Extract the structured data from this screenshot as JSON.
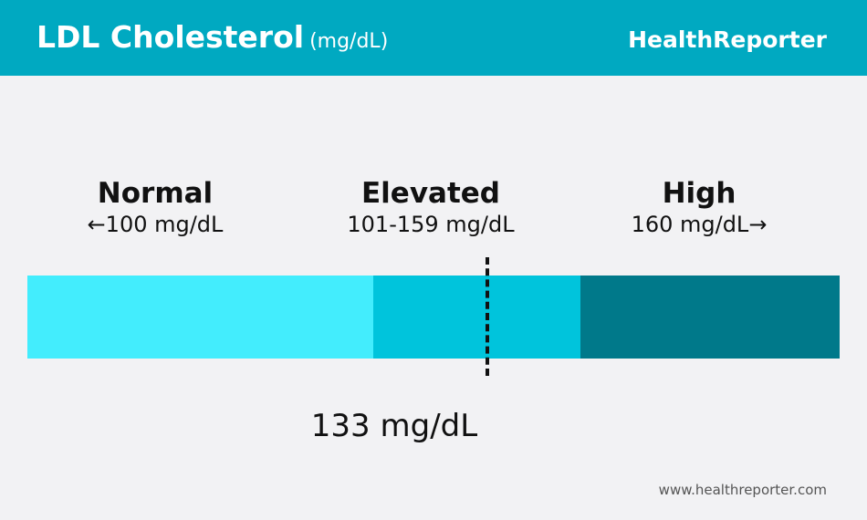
{
  "header": {
    "title": "LDL Cholesterol",
    "title_unit": "(mg/dL)",
    "brand": "HealthReporter",
    "background": "#00a9c1"
  },
  "chart_data": {
    "type": "bar",
    "title": "LDL Cholesterol (mg/dL)",
    "axis_range": [
      0,
      235
    ],
    "categories": [
      {
        "name": "Normal",
        "range_label": "100 mg/dL",
        "arrow": "←",
        "arrow_position": "before",
        "from": 0,
        "to": 100,
        "color": "#43edfd"
      },
      {
        "name": "Elevated",
        "range_label": "101-159 mg/dL",
        "arrow": "",
        "arrow_position": "none",
        "from": 100,
        "to": 160,
        "color": "#00c4dc"
      },
      {
        "name": "High",
        "range_label": "160 mg/dL",
        "arrow": "→",
        "arrow_position": "after",
        "from": 160,
        "to": 235,
        "color": "#00798a"
      }
    ],
    "marker": {
      "value": 133,
      "label": "133 mg/dL"
    }
  },
  "footer": {
    "url": "www.healthreporter.com"
  }
}
